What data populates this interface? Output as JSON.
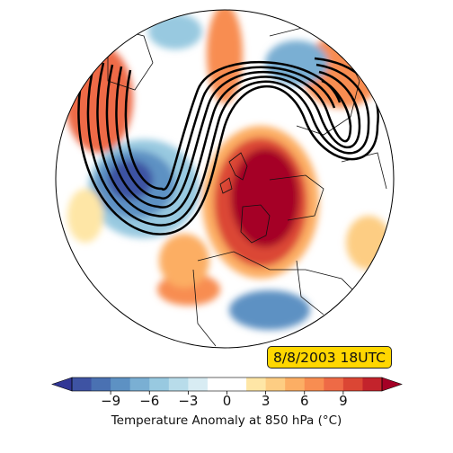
{
  "timestamp": "8/8/2003 18UTC",
  "colorbar": {
    "label": "Temperature Anomaly at 850 hPa (°C)",
    "ticks": [
      "−9",
      "−6",
      "−3",
      "0",
      "3",
      "6",
      "9"
    ],
    "tick_values": [
      -9,
      -6,
      -3,
      0,
      3,
      6,
      9
    ],
    "min": -12,
    "max": 12,
    "extend": "both",
    "colors": [
      "#313695",
      "#3e53a3",
      "#4a71b2",
      "#5d91c3",
      "#7aafd3",
      "#98c9e0",
      "#b8dcea",
      "#d8ecf3",
      "#ffffff",
      "#ffffff",
      "#fee6a6",
      "#fdcd83",
      "#fcae64",
      "#f88d51",
      "#ee6a46",
      "#db4634",
      "#c3232c",
      "#a50026"
    ]
  },
  "map": {
    "projection": "orthographic",
    "features": "coastlines and country borders",
    "contours": "black geopotential height lines forming an omega block over western Europe",
    "anomaly": "strong warm anomaly over France and western Europe; cold anomaly over the central North Atlantic and eastern Mediterranean"
  }
}
